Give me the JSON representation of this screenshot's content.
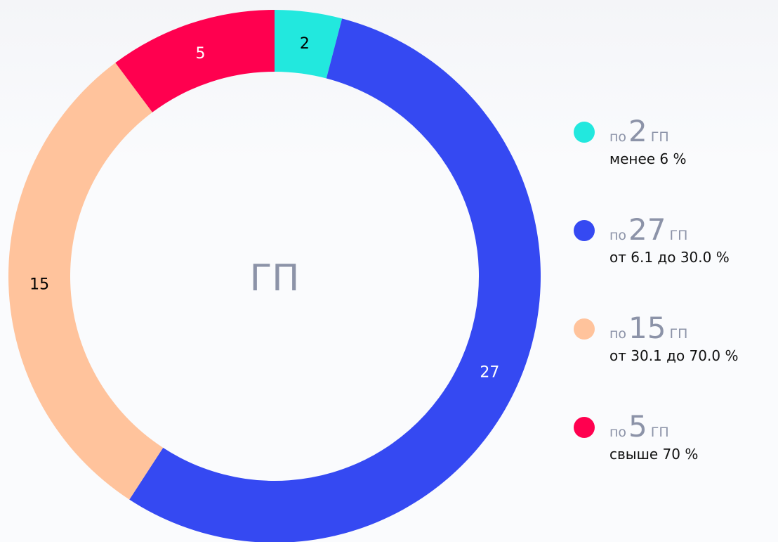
{
  "chart_data": {
    "type": "donut",
    "center_label": "ГП",
    "categories": [
      "менее 6 %",
      "от 6.1 до 30.0 %",
      "от 30.1 до 70.0 %",
      "свыше 70 %"
    ],
    "values": [
      2,
      27,
      15,
      5
    ],
    "colors": [
      "#22e8de",
      "#3549f2",
      "#ffc39c",
      "#ff004f"
    ],
    "label_colors": [
      "#000000",
      "#ffffff",
      "#000000",
      "#ffffff"
    ],
    "legend_prefix": "по",
    "legend_suffix": "ГП"
  }
}
